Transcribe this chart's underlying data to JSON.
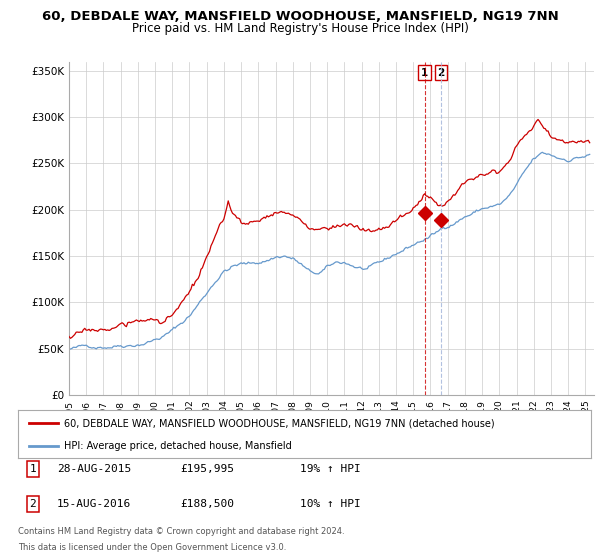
{
  "title": "60, DEBDALE WAY, MANSFIELD WOODHOUSE, MANSFIELD, NG19 7NN",
  "subtitle": "Price paid vs. HM Land Registry's House Price Index (HPI)",
  "ylabel_ticks": [
    "£0",
    "£50K",
    "£100K",
    "£150K",
    "£200K",
    "£250K",
    "£300K",
    "£350K"
  ],
  "ytick_vals": [
    0,
    50000,
    100000,
    150000,
    200000,
    250000,
    300000,
    350000
  ],
  "ylim": [
    0,
    360000
  ],
  "xlim_start": 1995.0,
  "xlim_end": 2025.5,
  "xticks": [
    1995,
    1996,
    1997,
    1998,
    1999,
    2000,
    2001,
    2002,
    2003,
    2004,
    2005,
    2006,
    2007,
    2008,
    2009,
    2010,
    2011,
    2012,
    2013,
    2014,
    2015,
    2016,
    2017,
    2018,
    2019,
    2020,
    2021,
    2022,
    2023,
    2024,
    2025
  ],
  "legend_line1_color": "#cc0000",
  "legend_line1_label": "60, DEBDALE WAY, MANSFIELD WOODHOUSE, MANSFIELD, NG19 7NN (detached house)",
  "legend_line2_color": "#6699cc",
  "legend_line2_label": "HPI: Average price, detached house, Mansfield",
  "sale1_date": 2015.66,
  "sale1_price": 195995,
  "sale2_date": 2016.62,
  "sale2_price": 188500,
  "footer": "Contains HM Land Registry data © Crown copyright and database right 2024.\nThis data is licensed under the Open Government Licence v3.0.",
  "background_color": "#ffffff",
  "grid_color": "#cccccc",
  "title_fontsize": 9.5,
  "subtitle_fontsize": 8.5,
  "hpi_waypoints": [
    [
      1995.0,
      49500
    ],
    [
      1995.5,
      50000
    ],
    [
      1996.0,
      51000
    ],
    [
      1996.5,
      52500
    ],
    [
      1997.0,
      54000
    ],
    [
      1997.5,
      56000
    ],
    [
      1998.0,
      58000
    ],
    [
      1998.5,
      60000
    ],
    [
      1999.0,
      62000
    ],
    [
      1999.5,
      65000
    ],
    [
      2000.0,
      68000
    ],
    [
      2000.5,
      72000
    ],
    [
      2001.0,
      77000
    ],
    [
      2001.5,
      84000
    ],
    [
      2002.0,
      93000
    ],
    [
      2002.5,
      105000
    ],
    [
      2003.0,
      118000
    ],
    [
      2003.5,
      132000
    ],
    [
      2004.0,
      143000
    ],
    [
      2004.5,
      148000
    ],
    [
      2005.0,
      150000
    ],
    [
      2005.5,
      149000
    ],
    [
      2006.0,
      151000
    ],
    [
      2006.5,
      154000
    ],
    [
      2007.0,
      158000
    ],
    [
      2007.5,
      160000
    ],
    [
      2008.0,
      157000
    ],
    [
      2008.5,
      150000
    ],
    [
      2009.0,
      140000
    ],
    [
      2009.5,
      138000
    ],
    [
      2010.0,
      143000
    ],
    [
      2010.5,
      147000
    ],
    [
      2011.0,
      148000
    ],
    [
      2011.5,
      145000
    ],
    [
      2012.0,
      142000
    ],
    [
      2012.5,
      141000
    ],
    [
      2013.0,
      143000
    ],
    [
      2013.5,
      147000
    ],
    [
      2014.0,
      153000
    ],
    [
      2014.5,
      158000
    ],
    [
      2015.0,
      163000
    ],
    [
      2015.5,
      168000
    ],
    [
      2016.0,
      172000
    ],
    [
      2016.5,
      177000
    ],
    [
      2017.0,
      184000
    ],
    [
      2017.5,
      190000
    ],
    [
      2018.0,
      196000
    ],
    [
      2018.5,
      200000
    ],
    [
      2019.0,
      204000
    ],
    [
      2019.5,
      207000
    ],
    [
      2020.0,
      208000
    ],
    [
      2020.5,
      215000
    ],
    [
      2021.0,
      227000
    ],
    [
      2021.5,
      240000
    ],
    [
      2022.0,
      252000
    ],
    [
      2022.5,
      257000
    ],
    [
      2023.0,
      255000
    ],
    [
      2023.5,
      252000
    ],
    [
      2024.0,
      252000
    ],
    [
      2024.5,
      255000
    ],
    [
      2025.3,
      258000
    ]
  ],
  "prop_waypoints": [
    [
      1995.0,
      63000
    ],
    [
      1995.5,
      64500
    ],
    [
      1996.0,
      65500
    ],
    [
      1996.5,
      67000
    ],
    [
      1997.0,
      69000
    ],
    [
      1997.5,
      71000
    ],
    [
      1998.0,
      73000
    ],
    [
      1998.5,
      75000
    ],
    [
      1999.0,
      76000
    ],
    [
      1999.5,
      77000
    ],
    [
      2000.0,
      78000
    ],
    [
      2000.5,
      80000
    ],
    [
      2001.0,
      84000
    ],
    [
      2001.5,
      92000
    ],
    [
      2002.0,
      104000
    ],
    [
      2002.5,
      120000
    ],
    [
      2003.0,
      138000
    ],
    [
      2003.5,
      158000
    ],
    [
      2004.0,
      172000
    ],
    [
      2004.25,
      195000
    ],
    [
      2004.5,
      183000
    ],
    [
      2005.0,
      172000
    ],
    [
      2005.5,
      168000
    ],
    [
      2006.0,
      172000
    ],
    [
      2006.5,
      178000
    ],
    [
      2007.0,
      185000
    ],
    [
      2007.5,
      185000
    ],
    [
      2008.0,
      178000
    ],
    [
      2008.5,
      170000
    ],
    [
      2009.0,
      162000
    ],
    [
      2009.5,
      160000
    ],
    [
      2010.0,
      165000
    ],
    [
      2010.5,
      168000
    ],
    [
      2011.0,
      172000
    ],
    [
      2011.5,
      168000
    ],
    [
      2012.0,
      163000
    ],
    [
      2012.5,
      160000
    ],
    [
      2013.0,
      162000
    ],
    [
      2013.5,
      165000
    ],
    [
      2014.0,
      170000
    ],
    [
      2014.5,
      176000
    ],
    [
      2015.0,
      182000
    ],
    [
      2015.5,
      190000
    ],
    [
      2015.66,
      196000
    ],
    [
      2016.0,
      192000
    ],
    [
      2016.5,
      188000
    ],
    [
      2016.62,
      188500
    ],
    [
      2017.0,
      194000
    ],
    [
      2017.5,
      202000
    ],
    [
      2018.0,
      212000
    ],
    [
      2018.5,
      222000
    ],
    [
      2019.0,
      232000
    ],
    [
      2019.5,
      238000
    ],
    [
      2020.0,
      240000
    ],
    [
      2020.5,
      250000
    ],
    [
      2021.0,
      265000
    ],
    [
      2021.5,
      278000
    ],
    [
      2022.0,
      290000
    ],
    [
      2022.25,
      295000
    ],
    [
      2022.5,
      288000
    ],
    [
      2023.0,
      278000
    ],
    [
      2023.5,
      272000
    ],
    [
      2024.0,
      270000
    ],
    [
      2024.5,
      275000
    ],
    [
      2025.3,
      278000
    ]
  ]
}
